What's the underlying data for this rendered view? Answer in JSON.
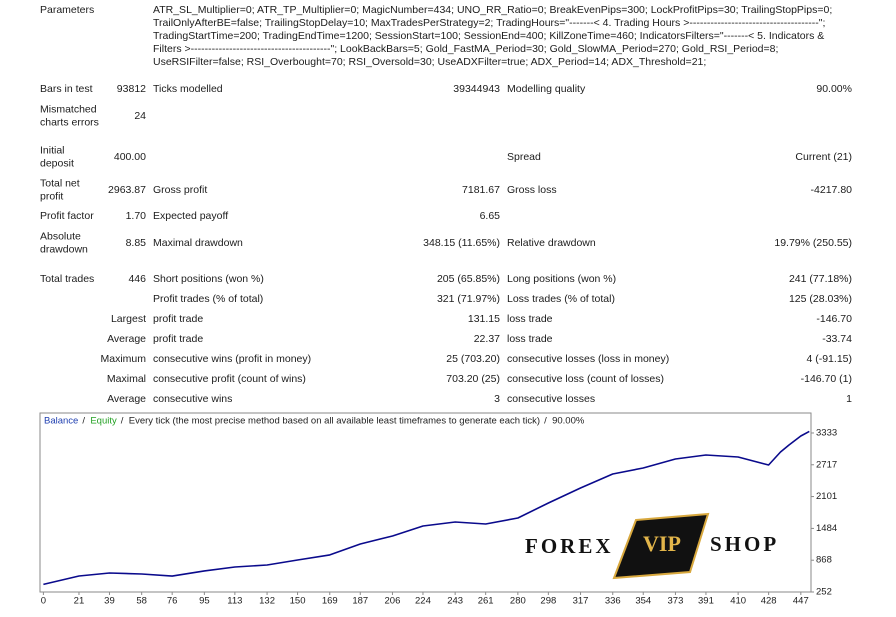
{
  "parameters": {
    "label": "Parameters",
    "lines": [
      "ATR_SL_Multiplier=0; ATR_TP_Multiplier=0; MagicNumber=434; UNO_RR_Ratio=0; BreakEvenPips=300; LockProfitPips=30; TrailingStopPips=0;",
      "TrailOnlyAfterBE=false; TrailingStopDelay=10; MaxTradesPerStrategy=2; TradingHours=\"-------< 4. Trading Hours >-------------------------------------\";",
      "TradingStartTime=200; TradingEndTime=1200; SessionStart=100; SessionEnd=400; KillZoneTime=460; IndicatorsFilters=\"-------< 5. Indicators &",
      "Filters >----------------------------------------\"; LookBackBars=5; Gold_FastMA_Period=30; Gold_SlowMA_Period=270; Gold_RSI_Period=8;",
      "UseRSIFilter=false; RSI_Overbought=70; RSI_Oversold=30; UseADXFilter=true; ADX_Period=14; ADX_Threshold=21;"
    ]
  },
  "table": {
    "rows": [
      [
        "Bars in test",
        "93812",
        "Ticks modelled",
        "39344943",
        "Modelling quality",
        "90.00%"
      ],
      [
        [
          "Mismatched",
          "charts errors"
        ],
        "24",
        null,
        null,
        null,
        null
      ],
      [
        [
          "Initial",
          "deposit"
        ],
        "400.00",
        null,
        null,
        "Spread",
        "Current (21)"
      ],
      [
        [
          "Total net",
          "profit"
        ],
        "2963.87",
        "Gross profit",
        "7181.67",
        "Gross loss",
        "-4217.80"
      ],
      [
        "Profit factor",
        "1.70",
        "Expected payoff",
        "6.65",
        null,
        null
      ],
      [
        [
          "Absolute",
          "drawdown"
        ],
        "8.85",
        "Maximal drawdown",
        "348.15 (11.65%)",
        "Relative drawdown",
        "19.79% (250.55)"
      ],
      [
        "Total trades",
        "446",
        "Short positions (won %)",
        "205 (65.85%)",
        "Long positions (won %)",
        "241 (77.18%)"
      ],
      [
        null,
        null,
        "Profit trades (% of total)",
        "321 (71.97%)",
        "Loss trades (% of total)",
        "125 (28.03%)"
      ],
      [
        null,
        "Largest",
        "profit trade",
        "131.15",
        "loss trade",
        "-146.70"
      ],
      [
        null,
        "Average",
        "profit trade",
        "22.37",
        "loss trade",
        "-33.74"
      ],
      [
        null,
        "Maximum",
        "consecutive wins (profit in money)",
        "25 (703.20)",
        "consecutive losses (loss in money)",
        "4 (-91.15)"
      ],
      [
        null,
        "Maximal",
        "consecutive profit (count of wins)",
        "703.20 (25)",
        "consecutive loss (count of losses)",
        "-146.70 (1)"
      ],
      [
        null,
        "Average",
        "consecutive wins",
        "3",
        "consecutive losses",
        "1"
      ]
    ]
  },
  "chart": {
    "type": "line",
    "header": [
      "Balance",
      "Equity",
      "Every tick (the most precise method based on all available least timeframes to generate each tick)",
      "90.00%"
    ],
    "header_colors": [
      "#1f3fb0",
      "#22a022",
      "#222222",
      "#222222"
    ],
    "header_separator": "/",
    "series": [
      {
        "name": "Balance",
        "color": "#0a0a8c",
        "x": [
          0,
          21,
          39,
          58,
          76,
          95,
          113,
          132,
          150,
          169,
          187,
          206,
          224,
          243,
          261,
          280,
          298,
          317,
          336,
          354,
          373,
          391,
          410,
          428,
          435,
          440,
          447,
          452
        ],
        "values": [
          400,
          562,
          620,
          600,
          560,
          660,
          737,
          775,
          872,
          970,
          1182,
          1337,
          1530,
          1608,
          1570,
          1686,
          1977,
          2267,
          2539,
          2655,
          2829,
          2907,
          2868,
          2713,
          2965,
          3100,
          3275,
          3364
        ]
      }
    ],
    "xlim": [
      -2,
      453
    ],
    "xticks": [
      0,
      21,
      39,
      58,
      76,
      95,
      113,
      132,
      150,
      169,
      187,
      206,
      224,
      243,
      261,
      280,
      298,
      317,
      336,
      354,
      373,
      391,
      410,
      428,
      447
    ],
    "ylim": [
      252,
      3720
    ],
    "yticks": [
      252,
      868,
      1484,
      2101,
      2717,
      3333
    ]
  },
  "watermark": {
    "left": "FOREX",
    "center": "VIP",
    "right": "SHOP"
  }
}
